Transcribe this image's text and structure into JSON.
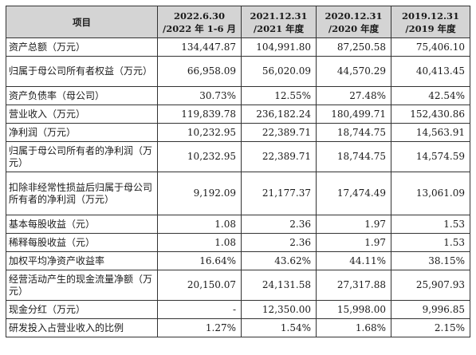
{
  "table": {
    "header": {
      "item": "项目",
      "columns": [
        {
          "line1": "2022.6.30",
          "line2": "/2022 年 1-6 月"
        },
        {
          "line1": "2021.12.31",
          "line2": "/2021 年度"
        },
        {
          "line1": "2020.12.31",
          "line2": "/2020 年度"
        },
        {
          "line1": "2019.12.31",
          "line2": "/2019 年度"
        }
      ]
    },
    "rows": [
      {
        "label": "资产总额（万元）",
        "values": [
          "134,447.87",
          "104,991.80",
          "87,250.58",
          "75,406.10"
        ]
      },
      {
        "label": "归属于母公司所有者权益（万元）",
        "values": [
          "66,958.09",
          "56,020.09",
          "44,570.29",
          "40,413.45"
        ]
      },
      {
        "label": "资产负债率（母公司）",
        "values": [
          "30.73%",
          "12.55%",
          "27.48%",
          "42.54%"
        ]
      },
      {
        "label": "营业收入（万元）",
        "values": [
          "119,839.78",
          "236,182.24",
          "180,499.71",
          "152,430.86"
        ]
      },
      {
        "label": "净利润（万元）",
        "values": [
          "10,232.95",
          "22,389.71",
          "18,744.75",
          "14,563.91"
        ]
      },
      {
        "label": "归属于母公司所有者的净利润（万元）",
        "values": [
          "10,232.95",
          "22,389.71",
          "18,744.75",
          "14,574.59"
        ]
      },
      {
        "label": "扣除非经常性损益后归属于母公司所有者的净利润（万元）",
        "values": [
          "9,192.09",
          "21,177.37",
          "17,474.49",
          "13,061.09"
        ]
      },
      {
        "label": "基本每股收益（元）",
        "values": [
          "1.08",
          "2.36",
          "1.97",
          "1.53"
        ]
      },
      {
        "label": "稀释每股收益（元）",
        "values": [
          "1.08",
          "2.36",
          "1.97",
          "1.53"
        ]
      },
      {
        "label": "加权平均净资产收益率",
        "values": [
          "16.64%",
          "43.62%",
          "44.11%",
          "38.15%"
        ]
      },
      {
        "label": "经营活动产生的现金流量净额（万元）",
        "values": [
          "20,150.07",
          "24,131.58",
          "27,317.88",
          "25,907.93"
        ]
      },
      {
        "label": "现金分红（万元）",
        "values": [
          "-",
          "12,350.00",
          "15,998.00",
          "9,996.85"
        ]
      },
      {
        "label": "研发投入占营业收入的比例",
        "values": [
          "1.27%",
          "1.54%",
          "1.68%",
          "2.15%"
        ]
      }
    ]
  }
}
